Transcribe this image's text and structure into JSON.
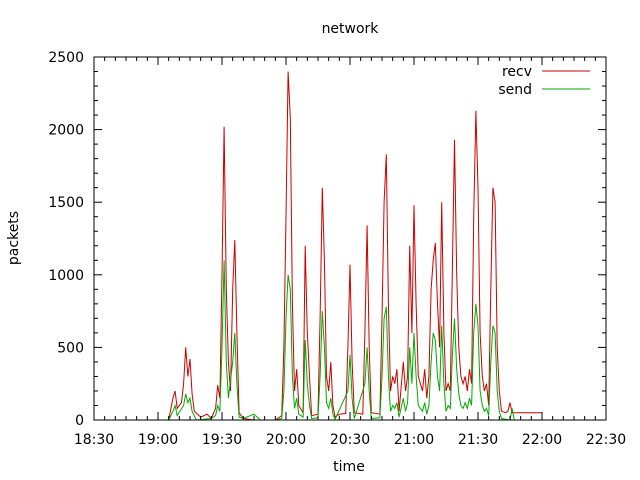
{
  "chart_data": {
    "type": "line",
    "title": "network",
    "xlabel": "time",
    "ylabel": "packets",
    "xlim": [
      "18:30",
      "22:30"
    ],
    "ylim": [
      0,
      2500
    ],
    "x_ticks": [
      "18:30",
      "19:00",
      "19:30",
      "20:00",
      "20:30",
      "21:00",
      "21:30",
      "22:00",
      "22:30"
    ],
    "y_ticks": [
      0,
      500,
      1000,
      1500,
      2000,
      2500
    ],
    "grid": false,
    "legend": "top-right",
    "series": [
      {
        "name": "recv",
        "color": "#cc0000",
        "points": [
          [
            "19:05",
            0
          ],
          [
            "19:07",
            150
          ],
          [
            "19:08",
            200
          ],
          [
            "19:09",
            80
          ],
          [
            "19:11",
            120
          ],
          [
            "19:12",
            250
          ],
          [
            "19:13",
            500
          ],
          [
            "19:14",
            300
          ],
          [
            "19:15",
            420
          ],
          [
            "19:16",
            180
          ],
          [
            "19:17",
            60
          ],
          [
            "19:20",
            20
          ],
          [
            "19:23",
            40
          ],
          [
            "19:25",
            10
          ],
          [
            "19:27",
            80
          ],
          [
            "19:28",
            240
          ],
          [
            "19:29",
            150
          ],
          [
            "19:30",
            1000
          ],
          [
            "19:31",
            2020
          ],
          [
            "19:32",
            900
          ],
          [
            "19:33",
            400
          ],
          [
            "19:34",
            200
          ],
          [
            "19:35",
            900
          ],
          [
            "19:36",
            1240
          ],
          [
            "19:37",
            600
          ],
          [
            "19:38",
            50
          ],
          [
            "19:40",
            10
          ],
          [
            "19:45",
            0
          ],
          [
            "19:55",
            0
          ],
          [
            "19:58",
            30
          ],
          [
            "19:59",
            500
          ],
          [
            "20:00",
            1400
          ],
          [
            "20:01",
            2400
          ],
          [
            "20:02",
            2080
          ],
          [
            "20:03",
            800
          ],
          [
            "20:04",
            200
          ],
          [
            "20:05",
            350
          ],
          [
            "20:06",
            100
          ],
          [
            "20:08",
            50
          ],
          [
            "20:09",
            1200
          ],
          [
            "20:10",
            600
          ],
          [
            "20:11",
            300
          ],
          [
            "20:12",
            30
          ],
          [
            "20:15",
            40
          ],
          [
            "20:16",
            700
          ],
          [
            "20:17",
            1600
          ],
          [
            "20:18",
            1100
          ],
          [
            "20:19",
            300
          ],
          [
            "20:20",
            200
          ],
          [
            "20:21",
            400
          ],
          [
            "20:22",
            100
          ],
          [
            "20:23",
            20
          ],
          [
            "20:25",
            40
          ],
          [
            "20:28",
            45
          ],
          [
            "20:29",
            500
          ],
          [
            "20:30",
            1070
          ],
          [
            "20:31",
            400
          ],
          [
            "20:32",
            50
          ],
          [
            "20:36",
            40
          ],
          [
            "20:37",
            600
          ],
          [
            "20:38",
            1340
          ],
          [
            "20:39",
            500
          ],
          [
            "20:40",
            50
          ],
          [
            "20:44",
            40
          ],
          [
            "20:45",
            700
          ],
          [
            "20:46",
            1500
          ],
          [
            "20:47",
            1830
          ],
          [
            "20:48",
            800
          ],
          [
            "20:49",
            200
          ],
          [
            "20:50",
            300
          ],
          [
            "20:51",
            250
          ],
          [
            "20:52",
            350
          ],
          [
            "20:53",
            60
          ],
          [
            "20:55",
            400
          ],
          [
            "20:56",
            200
          ],
          [
            "20:57",
            300
          ],
          [
            "20:58",
            1200
          ],
          [
            "20:59",
            600
          ],
          [
            "21:00",
            1480
          ],
          [
            "21:01",
            800
          ],
          [
            "21:02",
            300
          ],
          [
            "21:04",
            200
          ],
          [
            "21:05",
            350
          ],
          [
            "21:06",
            150
          ],
          [
            "21:07",
            300
          ],
          [
            "21:08",
            900
          ],
          [
            "21:09",
            1100
          ],
          [
            "21:10",
            1220
          ],
          [
            "21:11",
            800
          ],
          [
            "21:12",
            500
          ],
          [
            "21:13",
            1500
          ],
          [
            "21:14",
            600
          ],
          [
            "21:15",
            200
          ],
          [
            "21:16",
            250
          ],
          [
            "21:17",
            200
          ],
          [
            "21:18",
            1050
          ],
          [
            "21:19",
            1930
          ],
          [
            "21:20",
            1000
          ],
          [
            "21:21",
            500
          ],
          [
            "21:22",
            300
          ],
          [
            "21:23",
            250
          ],
          [
            "21:24",
            300
          ],
          [
            "21:25",
            200
          ],
          [
            "21:26",
            350
          ],
          [
            "21:27",
            250
          ],
          [
            "21:28",
            1400
          ],
          [
            "21:29",
            2130
          ],
          [
            "21:30",
            1600
          ],
          [
            "21:31",
            600
          ],
          [
            "21:32",
            300
          ],
          [
            "21:33",
            200
          ],
          [
            "21:34",
            250
          ],
          [
            "21:35",
            100
          ],
          [
            "21:36",
            900
          ],
          [
            "21:37",
            1600
          ],
          [
            "21:38",
            1500
          ],
          [
            "21:39",
            500
          ],
          [
            "21:40",
            200
          ],
          [
            "21:41",
            60
          ],
          [
            "21:43",
            50
          ],
          [
            "21:44",
            60
          ],
          [
            "21:45",
            120
          ],
          [
            "21:46",
            50
          ],
          [
            "22:00",
            50
          ]
        ]
      },
      {
        "name": "send",
        "color": "#00aa00",
        "points": [
          [
            "19:05",
            0
          ],
          [
            "19:07",
            60
          ],
          [
            "19:08",
            100
          ],
          [
            "19:09",
            30
          ],
          [
            "19:12",
            100
          ],
          [
            "19:13",
            180
          ],
          [
            "19:14",
            120
          ],
          [
            "19:15",
            150
          ],
          [
            "19:16",
            60
          ],
          [
            "19:18",
            0
          ],
          [
            "19:25",
            10
          ],
          [
            "19:27",
            30
          ],
          [
            "19:28",
            100
          ],
          [
            "19:29",
            60
          ],
          [
            "19:30",
            500
          ],
          [
            "19:31",
            1100
          ],
          [
            "19:32",
            400
          ],
          [
            "19:33",
            150
          ],
          [
            "19:35",
            400
          ],
          [
            "19:36",
            600
          ],
          [
            "19:37",
            250
          ],
          [
            "19:38",
            20
          ],
          [
            "19:40",
            10
          ],
          [
            "19:45",
            40
          ],
          [
            "19:48",
            0
          ],
          [
            "19:55",
            0
          ],
          [
            "19:58",
            10
          ],
          [
            "19:59",
            200
          ],
          [
            "20:00",
            700
          ],
          [
            "20:01",
            1000
          ],
          [
            "20:02",
            900
          ],
          [
            "20:03",
            300
          ],
          [
            "20:04",
            80
          ],
          [
            "20:05",
            150
          ],
          [
            "20:06",
            40
          ],
          [
            "20:08",
            20
          ],
          [
            "20:09",
            550
          ],
          [
            "20:10",
            250
          ],
          [
            "20:11",
            100
          ],
          [
            "20:12",
            10
          ],
          [
            "20:15",
            15
          ],
          [
            "20:16",
            300
          ],
          [
            "20:17",
            750
          ],
          [
            "20:18",
            500
          ],
          [
            "20:19",
            120
          ],
          [
            "20:20",
            80
          ],
          [
            "20:21",
            150
          ],
          [
            "20:22",
            40
          ],
          [
            "20:23",
            5
          ],
          [
            "20:29",
            200
          ],
          [
            "20:30",
            450
          ],
          [
            "20:31",
            150
          ],
          [
            "20:32",
            10
          ],
          [
            "20:37",
            250
          ],
          [
            "20:38",
            500
          ],
          [
            "20:39",
            200
          ],
          [
            "20:40",
            10
          ],
          [
            "20:44",
            15
          ],
          [
            "20:45",
            300
          ],
          [
            "20:46",
            700
          ],
          [
            "20:47",
            780
          ],
          [
            "20:48",
            300
          ],
          [
            "20:49",
            60
          ],
          [
            "20:50",
            100
          ],
          [
            "20:51",
            80
          ],
          [
            "20:52",
            120
          ],
          [
            "20:53",
            20
          ],
          [
            "20:55",
            150
          ],
          [
            "20:56",
            60
          ],
          [
            "20:57",
            120
          ],
          [
            "20:58",
            500
          ],
          [
            "20:59",
            250
          ],
          [
            "21:00",
            600
          ],
          [
            "21:01",
            300
          ],
          [
            "21:02",
            100
          ],
          [
            "21:04",
            60
          ],
          [
            "21:05",
            120
          ],
          [
            "21:06",
            40
          ],
          [
            "21:07",
            100
          ],
          [
            "21:08",
            400
          ],
          [
            "21:09",
            600
          ],
          [
            "21:10",
            550
          ],
          [
            "21:11",
            300
          ],
          [
            "21:12",
            200
          ],
          [
            "21:13",
            650
          ],
          [
            "21:14",
            250
          ],
          [
            "21:15",
            60
          ],
          [
            "21:16",
            100
          ],
          [
            "21:17",
            80
          ],
          [
            "21:18",
            450
          ],
          [
            "21:19",
            700
          ],
          [
            "21:20",
            350
          ],
          [
            "21:21",
            180
          ],
          [
            "21:22",
            100
          ],
          [
            "21:23",
            80
          ],
          [
            "21:24",
            120
          ],
          [
            "21:25",
            80
          ],
          [
            "21:26",
            150
          ],
          [
            "21:27",
            100
          ],
          [
            "21:28",
            600
          ],
          [
            "21:29",
            800
          ],
          [
            "21:30",
            650
          ],
          [
            "21:31",
            200
          ],
          [
            "21:32",
            100
          ],
          [
            "21:33",
            60
          ],
          [
            "21:34",
            80
          ],
          [
            "21:35",
            30
          ],
          [
            "21:36",
            400
          ],
          [
            "21:37",
            650
          ],
          [
            "21:38",
            600
          ],
          [
            "21:39",
            200
          ],
          [
            "21:40",
            60
          ],
          [
            "21:41",
            10
          ],
          [
            "21:45",
            0
          ],
          [
            "21:46",
            80
          ],
          [
            "21:47",
            0
          ],
          [
            "22:00",
            0
          ]
        ]
      }
    ]
  }
}
